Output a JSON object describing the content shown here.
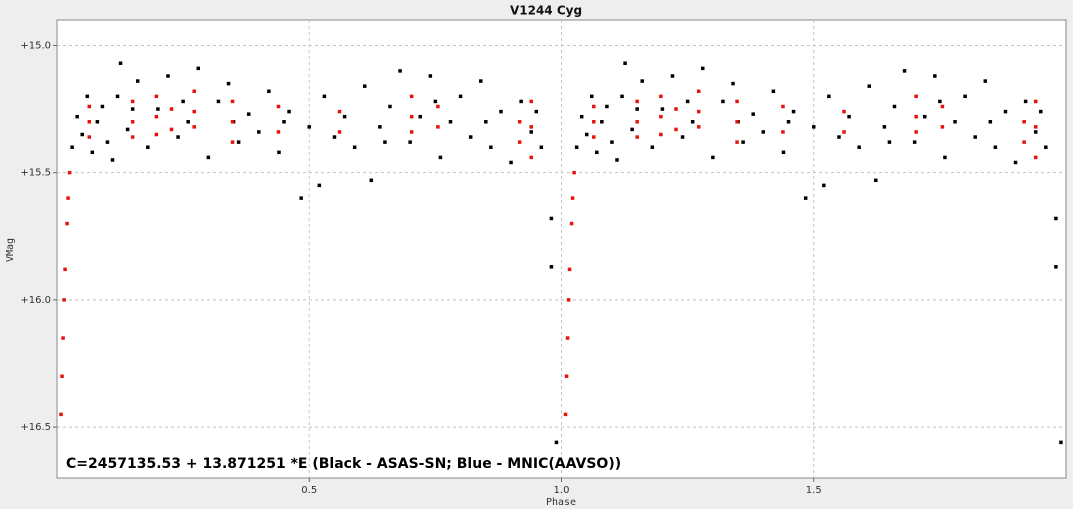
{
  "chart_data": {
    "type": "scatter",
    "title": "V1244 Cyg",
    "xlabel": "Phase",
    "ylabel": "VMag",
    "annotation": "C=2457135.53 + 13.871251 *E (Black - ASAS-SN; Blue - MNIC(AAVSO))",
    "xlim": [
      0,
      2
    ],
    "ylim": [
      16.7,
      14.9
    ],
    "xticks": [
      0.5,
      {
        "value": 1,
        "label": "1.0"
      },
      1.5
    ],
    "yticks": [
      {
        "value": 15,
        "label": "+15.0"
      },
      {
        "value": 15.5,
        "label": "+15.5"
      },
      {
        "value": 16,
        "label": "+16.0"
      },
      {
        "value": 16.5,
        "label": "+16.5"
      }
    ],
    "grid": true,
    "series": [
      {
        "color": "#000000",
        "x": [
          0.03,
          0.04,
          0.05,
          0.06,
          0.07,
          0.08,
          0.09,
          0.1,
          0.11,
          0.12,
          0.126,
          0.14,
          0.15,
          0.16,
          0.18,
          0.2,
          0.22,
          0.24,
          0.25,
          0.26,
          0.28,
          0.3,
          0.32,
          0.34,
          0.35,
          0.36,
          0.38,
          0.4,
          0.42,
          0.44,
          0.45,
          0.46,
          0.484,
          0.5,
          0.52,
          0.53,
          0.55,
          0.57,
          0.59,
          0.61,
          0.623,
          0.64,
          0.65,
          0.66,
          0.68,
          0.7,
          0.72,
          0.74,
          0.75,
          0.76,
          0.78,
          0.8,
          0.82,
          0.84,
          0.85,
          0.86,
          0.88,
          0.9,
          0.92,
          0.94,
          0.95,
          0.96,
          0.98,
          0.98,
          0.99,
          1.03,
          1.04,
          1.05,
          1.06,
          1.07,
          1.08,
          1.09,
          1.1,
          1.11,
          1.12,
          1.126,
          1.14,
          1.15,
          1.16,
          1.18,
          1.2,
          1.22,
          1.24,
          1.25,
          1.26,
          1.28,
          1.3,
          1.32,
          1.34,
          1.35,
          1.36,
          1.38,
          1.4,
          1.42,
          1.44,
          1.45,
          1.46,
          1.484,
          1.5,
          1.52,
          1.53,
          1.55,
          1.57,
          1.59,
          1.61,
          1.623,
          1.64,
          1.65,
          1.66,
          1.68,
          1.7,
          1.72,
          1.74,
          1.75,
          1.76,
          1.78,
          1.8,
          1.82,
          1.84,
          1.85,
          1.86,
          1.88,
          1.9,
          1.92,
          1.94,
          1.95,
          1.96,
          1.98,
          1.98,
          1.99
        ],
        "values": [
          15.4,
          15.28,
          15.35,
          15.2,
          15.42,
          15.3,
          15.24,
          15.38,
          15.45,
          15.2,
          15.07,
          15.33,
          15.25,
          15.14,
          15.4,
          15.25,
          15.12,
          15.36,
          15.22,
          15.3,
          15.09,
          15.44,
          15.22,
          15.15,
          15.3,
          15.38,
          15.27,
          15.34,
          15.18,
          15.42,
          15.3,
          15.26,
          15.6,
          15.32,
          15.55,
          15.2,
          15.36,
          15.28,
          15.4,
          15.16,
          15.53,
          15.32,
          15.38,
          15.24,
          15.1,
          15.38,
          15.28,
          15.12,
          15.22,
          15.44,
          15.3,
          15.2,
          15.36,
          15.14,
          15.3,
          15.4,
          15.26,
          15.46,
          15.22,
          15.34,
          15.26,
          15.4,
          15.68,
          15.87,
          16.56,
          15.4,
          15.28,
          15.35,
          15.2,
          15.42,
          15.3,
          15.24,
          15.38,
          15.45,
          15.2,
          15.07,
          15.33,
          15.25,
          15.14,
          15.4,
          15.25,
          15.12,
          15.36,
          15.22,
          15.3,
          15.09,
          15.44,
          15.22,
          15.15,
          15.3,
          15.38,
          15.27,
          15.34,
          15.18,
          15.42,
          15.3,
          15.26,
          15.6,
          15.32,
          15.55,
          15.2,
          15.36,
          15.28,
          15.4,
          15.16,
          15.53,
          15.32,
          15.38,
          15.24,
          15.1,
          15.38,
          15.28,
          15.12,
          15.22,
          15.44,
          15.3,
          15.2,
          15.36,
          15.14,
          15.3,
          15.4,
          15.26,
          15.46,
          15.22,
          15.34,
          15.26,
          15.4,
          15.68,
          15.87,
          16.56
        ]
      },
      {
        "color": "#e8120c",
        "x": [
          0.008,
          0.01,
          0.012,
          0.014,
          0.016,
          0.02,
          0.022,
          0.025,
          0.064,
          0.064,
          0.064,
          0.15,
          0.15,
          0.15,
          0.197,
          0.197,
          0.197,
          0.227,
          0.227,
          0.272,
          0.272,
          0.272,
          0.348,
          0.348,
          0.348,
          0.439,
          0.439,
          0.56,
          0.56,
          0.703,
          0.703,
          0.703,
          0.755,
          0.755,
          0.917,
          0.917,
          0.94,
          0.94,
          0.94,
          1.008,
          1.01,
          1.012,
          1.014,
          1.016,
          1.02,
          1.022,
          1.025,
          1.064,
          1.064,
          1.064,
          1.15,
          1.15,
          1.15,
          1.197,
          1.197,
          1.197,
          1.227,
          1.227,
          1.272,
          1.272,
          1.272,
          1.348,
          1.348,
          1.348,
          1.439,
          1.439,
          1.56,
          1.56,
          1.703,
          1.703,
          1.703,
          1.755,
          1.755,
          1.917,
          1.917,
          1.94,
          1.94,
          1.94
        ],
        "values": [
          16.45,
          16.3,
          16.15,
          16,
          15.88,
          15.7,
          15.6,
          15.5,
          15.24,
          15.3,
          15.36,
          15.22,
          15.3,
          15.36,
          15.2,
          15.28,
          15.35,
          15.25,
          15.33,
          15.18,
          15.26,
          15.32,
          15.22,
          15.3,
          15.38,
          15.24,
          15.34,
          15.26,
          15.34,
          15.2,
          15.28,
          15.34,
          15.24,
          15.32,
          15.3,
          15.38,
          15.22,
          15.32,
          15.44,
          16.45,
          16.3,
          16.15,
          16,
          15.88,
          15.7,
          15.6,
          15.5,
          15.24,
          15.3,
          15.36,
          15.22,
          15.3,
          15.36,
          15.2,
          15.28,
          15.35,
          15.25,
          15.33,
          15.18,
          15.26,
          15.32,
          15.22,
          15.3,
          15.38,
          15.24,
          15.34,
          15.26,
          15.34,
          15.2,
          15.28,
          15.34,
          15.24,
          15.32,
          15.3,
          15.38,
          15.22,
          15.32,
          15.44
        ]
      }
    ]
  }
}
